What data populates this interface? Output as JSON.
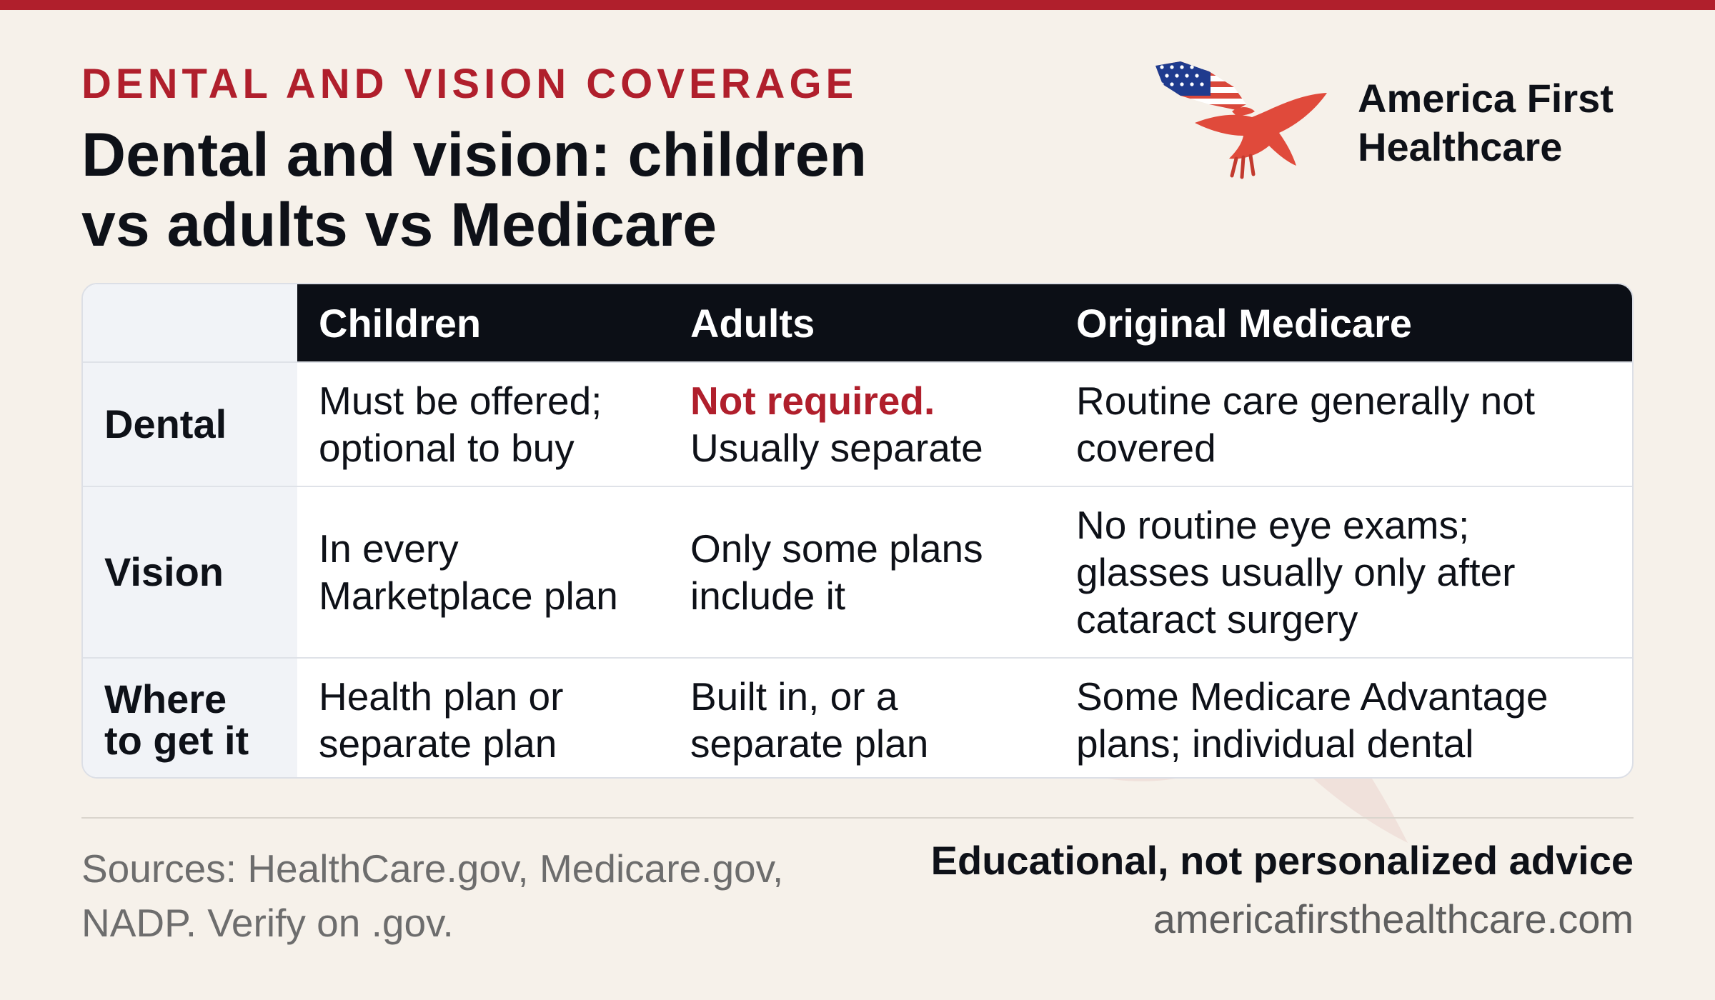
{
  "colors": {
    "accent_red": "#b01f2c",
    "header_black": "#0c0f16",
    "background": "#f6f1ea",
    "text": "#0e1118"
  },
  "header": {
    "kicker": "DENTAL AND VISION COVERAGE",
    "title_line1": "Dental and vision: children",
    "title_line2": "vs adults vs Medicare"
  },
  "brand": {
    "logo_icon": "eagle-flag-icon",
    "name_line1": "America First",
    "name_line2": "Healthcare"
  },
  "table": {
    "columns": [
      "Children",
      "Adults",
      "Original Medicare"
    ],
    "rows": [
      {
        "label_lines": [
          "Dental"
        ],
        "children_lines": [
          "Must be offered;",
          "optional to buy"
        ],
        "adults_highlight": "Not required.",
        "adults_lines": [
          "Usually separate"
        ],
        "medicare_lines": [
          "Routine care generally not",
          "covered"
        ]
      },
      {
        "label_lines": [
          "Vision"
        ],
        "children_lines": [
          "In every",
          "Marketplace plan"
        ],
        "adults_lines": [
          "Only some plans",
          "include it"
        ],
        "medicare_lines": [
          "No routine eye exams;",
          "glasses usually only after",
          "cataract surgery"
        ]
      },
      {
        "label_lines": [
          "Where",
          "to get it"
        ],
        "children_lines": [
          "Health plan or",
          "separate plan"
        ],
        "adults_lines": [
          "Built in, or a",
          "separate plan"
        ],
        "medicare_lines": [
          "Some Medicare Advantage",
          "plans; individual dental"
        ]
      }
    ]
  },
  "footer": {
    "sources_line1": "Sources: HealthCare.gov, Medicare.gov,",
    "sources_line2": "NADP. Verify on .gov.",
    "disclaimer": "Educational, not personalized advice",
    "website": "americafirsthealthcare.com"
  }
}
